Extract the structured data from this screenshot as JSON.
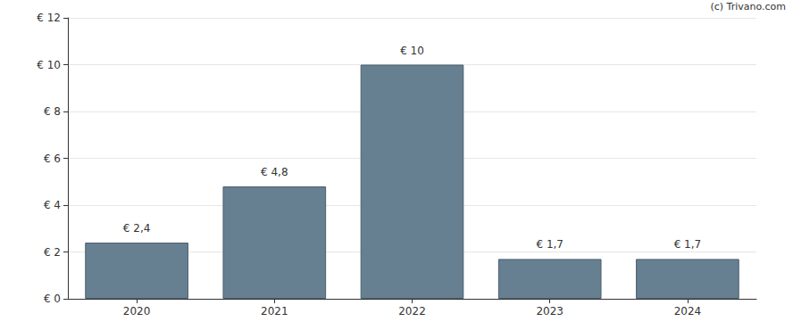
{
  "chart_data": {
    "type": "bar",
    "annotation": "(c) Trivano.com",
    "categories": [
      "2020",
      "2021",
      "2022",
      "2023",
      "2024"
    ],
    "values": [
      2.4,
      4.8,
      10,
      1.7,
      1.7
    ],
    "value_labels": [
      "€ 2,4",
      "€ 4,8",
      "€ 10",
      "€ 1,7",
      "€ 1,7"
    ],
    "data_labels": true,
    "color": "#667f91",
    "ylim": [
      0,
      12
    ],
    "yticks": [
      {
        "value": 0,
        "label": "€ 0"
      },
      {
        "value": 2,
        "label": "€ 2"
      },
      {
        "value": 4,
        "label": "€ 4"
      },
      {
        "value": 6,
        "label": "€ 6"
      },
      {
        "value": 8,
        "label": "€ 8"
      },
      {
        "value": 10,
        "label": "€ 10"
      },
      {
        "value": 12,
        "label": "€ 12"
      }
    ],
    "grid": true
  }
}
